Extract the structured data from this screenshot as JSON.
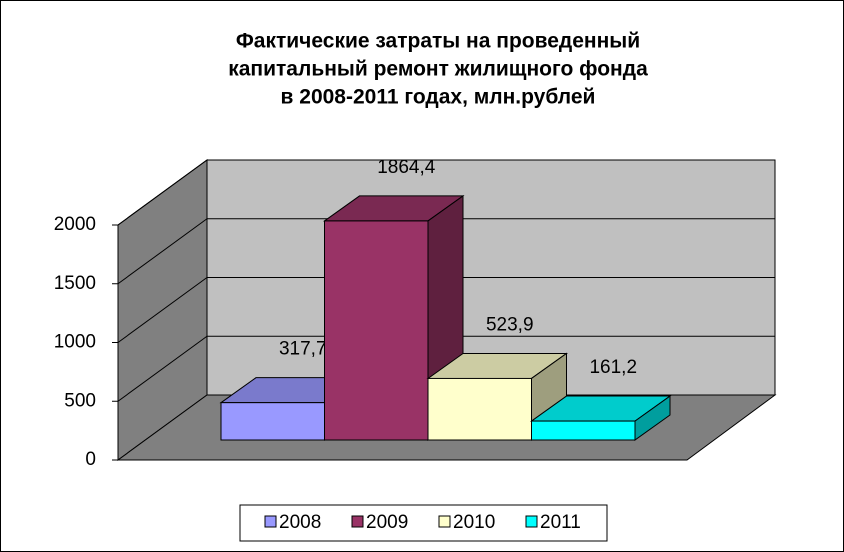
{
  "chart_data": {
    "type": "bar3d",
    "title": [
      "Фактические затраты на проведенный",
      "капитальный ремонт жилищного фонда",
      "в 2008-2011 годах, млн.рублей"
    ],
    "series": [
      {
        "name": "2008",
        "color": "#9999ff",
        "values": [
          317.7
        ],
        "value_labels": [
          "317,7"
        ]
      },
      {
        "name": "2009",
        "color": "#993366",
        "values": [
          1864.4
        ],
        "value_labels": [
          "1864,4"
        ]
      },
      {
        "name": "2010",
        "color": "#ffffcc",
        "values": [
          523.9
        ],
        "value_labels": [
          "523,9"
        ]
      },
      {
        "name": "2011",
        "color": "#00ffff",
        "values": [
          161.2
        ],
        "value_labels": [
          "161,2"
        ]
      }
    ],
    "ylim": [
      0,
      2000
    ],
    "yticks": [
      0,
      500,
      1000,
      1500,
      2000
    ],
    "grid": true,
    "legend": "bottom"
  }
}
